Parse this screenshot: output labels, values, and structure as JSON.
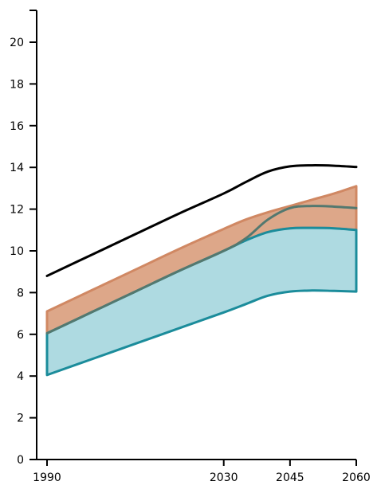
{
  "chart_data": {
    "type": "area",
    "title": "",
    "xlabel": "",
    "ylabel": "",
    "xlim": [
      1990,
      2060
    ],
    "ylim": [
      0,
      21.5
    ],
    "x_ticks": [
      1990,
      2030,
      2045,
      2060
    ],
    "y_ticks": [
      0,
      2,
      4,
      6,
      8,
      10,
      12,
      14,
      16,
      18,
      20
    ],
    "x_tick_labels": [
      "1990",
      "2030",
      "2045",
      "2060"
    ],
    "y_tick_labels": [
      "0",
      "2",
      "4",
      "6",
      "8",
      "10",
      "12",
      "14",
      "16",
      "18",
      "20"
    ],
    "grid": false,
    "legend": "none",
    "series": [
      {
        "kind": "line",
        "color": "#000000",
        "x": [
          1990,
          2000,
          2010,
          2020,
          2030,
          2035,
          2040,
          2045,
          2050,
          2055,
          2060
        ],
        "y": [
          8.8,
          9.8,
          10.8,
          11.8,
          12.75,
          13.3,
          13.8,
          14.05,
          14.1,
          14.08,
          14.02
        ]
      },
      {
        "kind": "band",
        "fill": "#d79874",
        "stroke": "#d08863",
        "x": [
          1990,
          2000,
          2010,
          2020,
          2030,
          2035,
          2040,
          2045,
          2050,
          2055,
          2060
        ],
        "upper": [
          7.1,
          8.1,
          9.1,
          10.1,
          11.05,
          11.5,
          11.85,
          12.15,
          12.45,
          12.75,
          13.1
        ],
        "lower": [
          6.05,
          7.05,
          8.05,
          9.05,
          10.0,
          10.5,
          10.9,
          11.08,
          11.1,
          11.08,
          11.0
        ]
      },
      {
        "kind": "band",
        "fill": "#aedae1",
        "stroke": "#1b8c9b",
        "x": [
          1990,
          2000,
          2010,
          2020,
          2030,
          2035,
          2040,
          2045,
          2050,
          2055,
          2060
        ],
        "upper": [
          6.05,
          7.05,
          8.05,
          9.05,
          10.0,
          10.5,
          10.9,
          11.08,
          11.1,
          11.08,
          11.0
        ],
        "lower": [
          4.05,
          4.8,
          5.55,
          6.3,
          7.05,
          7.45,
          7.85,
          8.05,
          8.1,
          8.08,
          8.05
        ]
      },
      {
        "kind": "line",
        "color": "#53786f",
        "x": [
          1990,
          2000,
          2010,
          2020,
          2030,
          2035,
          2040,
          2045,
          2050,
          2055,
          2060
        ],
        "y": [
          6.05,
          7.05,
          8.05,
          9.05,
          10.0,
          10.6,
          11.5,
          12.05,
          12.15,
          12.12,
          12.05
        ]
      }
    ]
  }
}
